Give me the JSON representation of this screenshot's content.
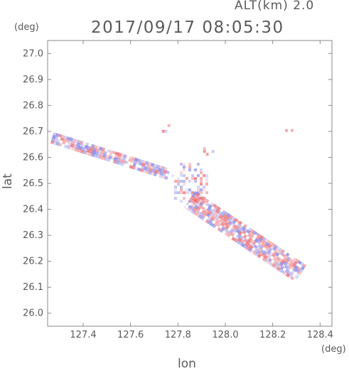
{
  "header": {
    "altitude": "ALT(km) 2.0",
    "datetime": "2017/09/17 08:05:30"
  },
  "units": {
    "y": "(deg)",
    "x": "(deg)"
  },
  "chart_data": {
    "type": "heatmap",
    "title": "2017/09/17 08:05:30",
    "subtitle": "ALT(km) 2.0",
    "xlabel": "lon",
    "ylabel": "lat",
    "xunit": "(deg)",
    "yunit": "(deg)",
    "xlim": [
      127.25,
      128.45
    ],
    "ylim": [
      25.95,
      27.05
    ],
    "xticks": [
      127.4,
      127.6,
      127.8,
      128.0,
      128.2,
      128.4
    ],
    "xtick_labels": [
      "127.4",
      "127.6",
      "127.8",
      "128.0",
      "128.2",
      "128.4"
    ],
    "yticks": [
      26.0,
      26.1,
      26.2,
      26.3,
      26.4,
      26.5,
      26.6,
      26.7,
      26.8,
      26.9,
      27.0
    ],
    "ytick_labels": [
      "26.0",
      "26.1",
      "26.2",
      "26.3",
      "26.4",
      "26.5",
      "26.6",
      "26.7",
      "26.8",
      "26.9",
      "27.0"
    ],
    "grid": false,
    "legend": "none",
    "colors": {
      "positive": "#e8585f",
      "negative": "#5a63e6",
      "neutral": "#ffffff"
    },
    "regions": [
      {
        "kind": "band",
        "from": [
          127.27,
          26.68
        ],
        "to": [
          127.76,
          26.54
        ],
        "half_width": 0.018
      },
      {
        "kind": "band",
        "from": [
          127.85,
          26.44
        ],
        "to": [
          128.31,
          26.16
        ],
        "half_width": 0.037
      },
      {
        "kind": "cluster",
        "center": [
          127.85,
          26.5
        ],
        "radius": [
          0.09,
          0.09
        ]
      },
      {
        "kind": "cluster",
        "center": [
          127.91,
          26.63
        ],
        "radius": [
          0.04,
          0.02
        ]
      },
      {
        "kind": "cluster",
        "center": [
          127.74,
          26.72
        ],
        "radius": [
          0.02,
          0.03
        ]
      },
      {
        "kind": "cluster",
        "center": [
          128.26,
          26.71
        ],
        "radius": [
          0.02,
          0.01
        ]
      },
      {
        "kind": "cluster",
        "center": [
          128.29,
          26.76
        ],
        "radius": [
          0.008,
          0.006
        ]
      },
      {
        "kind": "cluster",
        "center": [
          127.84,
          26.67
        ],
        "radius": [
          0.015,
          0.012
        ]
      }
    ]
  }
}
